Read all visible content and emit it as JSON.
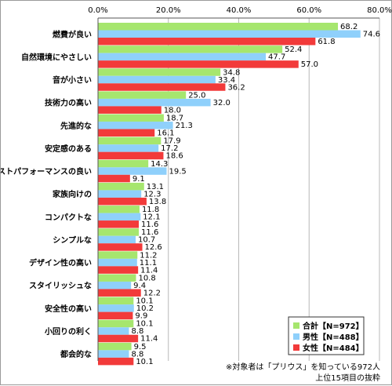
{
  "chart_data": {
    "type": "bar",
    "orientation": "horizontal",
    "xlim": [
      0,
      80
    ],
    "ticks": [
      "0.0%",
      "20.0%",
      "40.0%",
      "60.0%",
      "80.0%"
    ],
    "grid": true,
    "legend_position": "bottom-right",
    "categories": [
      "燃費が良い",
      "自然環境にやさしい",
      "音が小さい",
      "技術力の高い",
      "先進的な",
      "安定感のある",
      "コストパフォーマンスの良い",
      "家族向けの",
      "コンパクトな",
      "シンプルな",
      "デザイン性の高い",
      "スタイリッシュな",
      "安全性の高い",
      "小回りの利く",
      "都会的な"
    ],
    "series": [
      {
        "name": "合計【N=972】",
        "color": "#a6e66e",
        "values": [
          68.2,
          52.4,
          34.8,
          25.0,
          18.7,
          17.9,
          14.3,
          13.1,
          11.8,
          11.6,
          11.2,
          10.8,
          10.1,
          10.1,
          9.5
        ],
        "labels": [
          "68.2",
          "52.4",
          "34.8",
          "25.0",
          "18.7",
          "17.9",
          "14.3",
          "13.1",
          "11.8",
          "11.6",
          "11.2",
          "10.8",
          "10.1",
          "10.1",
          "9.5"
        ]
      },
      {
        "name": "男性【N=488】",
        "color": "#8fd0fb",
        "values": [
          74.6,
          47.7,
          33.4,
          32.0,
          21.3,
          17.2,
          19.5,
          12.3,
          12.1,
          10.7,
          11.1,
          9.4,
          10.2,
          8.8,
          8.8
        ],
        "labels": [
          "74.6",
          "47.7",
          "33.4",
          "32.0",
          "21.3",
          "17.2",
          "19.5",
          "12.3",
          "12.1",
          "10.7",
          "11.1",
          "9.4",
          "10.2",
          "8.8",
          "8.8"
        ]
      },
      {
        "name": "女性【N=484】",
        "color": "#f23a3a",
        "values": [
          61.8,
          57.0,
          36.2,
          18.0,
          16.1,
          18.6,
          9.1,
          13.8,
          11.6,
          12.6,
          11.4,
          12.2,
          9.9,
          11.4,
          10.1
        ],
        "labels": [
          "61.8",
          "57.0",
          "36.2",
          "18.0",
          "16.1",
          "18.6",
          "9.1",
          "13.8",
          "11.6",
          "12.6",
          "11.4",
          "12.2",
          "9.9",
          "11.4",
          "10.1"
        ]
      }
    ],
    "notes": [
      "※対象者は「プリウス」を知っている972人",
      "上位15項目の抜粋"
    ]
  }
}
